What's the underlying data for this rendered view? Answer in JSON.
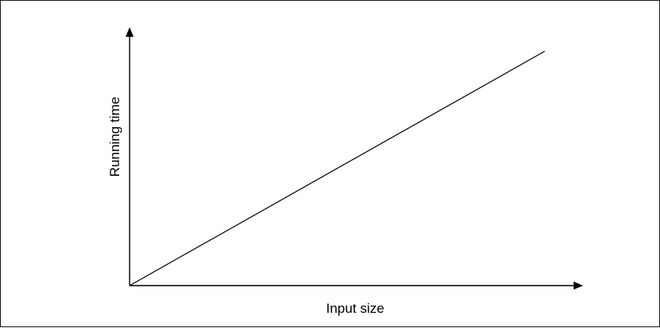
{
  "chart_data": {
    "type": "line",
    "title": "",
    "xlabel": "Input size",
    "ylabel": "Running time",
    "x_ticks_labeled": false,
    "y_ticks_labeled": false,
    "grid": false,
    "legend": "none",
    "series": [
      {
        "values_description_free": true,
        "x": [
          0,
          1
        ],
        "y": [
          0,
          1
        ]
      }
    ],
    "xlim": [
      0,
      1
    ],
    "ylim": [
      0,
      1
    ],
    "colors": {
      "line": "#000000",
      "axis": "#000000"
    }
  }
}
